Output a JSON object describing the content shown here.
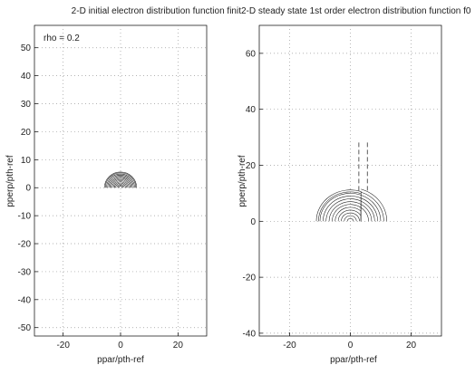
{
  "chart_data": [
    {
      "type": "contour",
      "title": "2-D initial electron distribution function finit",
      "xlabel": "ppar/pth-ref",
      "ylabel": "pperp/pth-ref",
      "xlim": [
        -30,
        30
      ],
      "ylim": [
        -53,
        58
      ],
      "xticks": [
        -20,
        0,
        20
      ],
      "yticks": [
        -50,
        -40,
        -30,
        -20,
        -10,
        0,
        10,
        20,
        30,
        40,
        50
      ],
      "grid": true,
      "annotation": "rho = 0.2",
      "contours": {
        "shape": "semicircle",
        "center": [
          0,
          0
        ],
        "radii": [
          0.5,
          0.9,
          1.3,
          1.7,
          2.1,
          2.5,
          2.9,
          3.3,
          3.7,
          4.1,
          4.5,
          4.9,
          5.3,
          5.6
        ]
      }
    },
    {
      "type": "contour",
      "title": "2-D steady state 1st order electron distribution function f0",
      "xlabel": "ppar/pth-ref",
      "ylabel": "pperp/pth-ref",
      "xlim": [
        -30,
        30
      ],
      "ylim": [
        -41,
        70
      ],
      "xticks": [
        -20,
        0,
        20
      ],
      "yticks": [
        -40,
        -20,
        0,
        20,
        40,
        60
      ],
      "grid": true,
      "contours": {
        "shape": "semicircle",
        "center": [
          0,
          0
        ],
        "radii": [
          1,
          2,
          3,
          4,
          5,
          6,
          7,
          8,
          9,
          10,
          10.5,
          11.2
        ],
        "cutoff_x": 3.5,
        "outer_radii": [
          6,
          7,
          8,
          9,
          10,
          11,
          12
        ]
      },
      "guide_lines": [
        {
          "x": 2.8,
          "y_range": [
            11,
            29
          ]
        },
        {
          "x": 5.6,
          "y_range": [
            11,
            29
          ]
        }
      ]
    }
  ]
}
